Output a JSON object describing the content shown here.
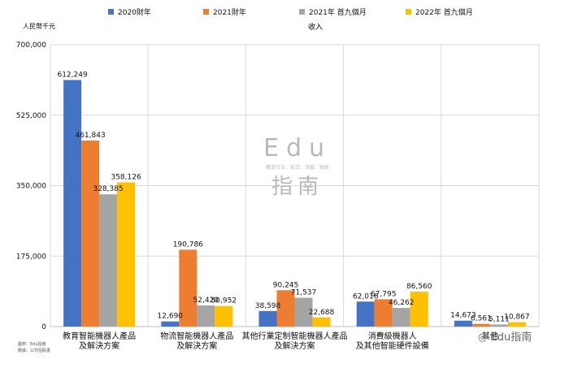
{
  "chart_data": {
    "type": "bar",
    "title": "收入",
    "ylabel": "人民幣千元",
    "xlabel": "",
    "ylim": [
      0,
      700000
    ],
    "yticks": [
      0,
      175000,
      350000,
      525000,
      700000
    ],
    "ytick_labels": [
      "0",
      "175,000",
      "350,000",
      "525,000",
      "700,000"
    ],
    "grid": true,
    "legend_position": "top",
    "categories": [
      [
        "教育智能機器人產品",
        "及解決方案"
      ],
      [
        "物流智能機器人產品",
        "及解決方案"
      ],
      [
        "其他行業定制智能機器人產品",
        "及解決方案"
      ],
      [
        "消費級機器人",
        "及其他智能硬件設備"
      ],
      [
        "其他"
      ]
    ],
    "series": [
      {
        "name": "2020財年",
        "color": "#4472c4",
        "values": [
          612249,
          12690,
          38598,
          62016,
          14673
        ],
        "labels": [
          "612,249",
          "12,690",
          "38,598",
          "62,016",
          "14,673"
        ]
      },
      {
        "name": "2021財年",
        "color": "#ed7d31",
        "values": [
          461843,
          190786,
          90245,
          67795,
          6561
        ],
        "labels": [
          "461,843",
          "190,786",
          "90,245",
          "67,795",
          "6,561"
        ]
      },
      {
        "name": "2021年 首九個月",
        "color": "#a5a5a5",
        "values": [
          328385,
          52420,
          71537,
          46262,
          5111
        ],
        "labels": [
          "328,385",
          "52,420",
          "71,537",
          "46,262",
          "5,111"
        ]
      },
      {
        "name": "2022年 首九個月",
        "color": "#ffc000",
        "values": [
          358126,
          50952,
          22688,
          86560,
          10867
        ],
        "labels": [
          "358,126",
          "50,952",
          "22,688",
          "86,560",
          "10,867"
        ]
      }
    ]
  },
  "source_note": {
    "line1": "圖表：Edu指南",
    "line2": "數據：公司招股書"
  },
  "watermark": {
    "brand": "Edu",
    "tagline": "教育行业、前沿、深度、独家",
    "name": "指南",
    "mascot_label": "Edu指南"
  }
}
